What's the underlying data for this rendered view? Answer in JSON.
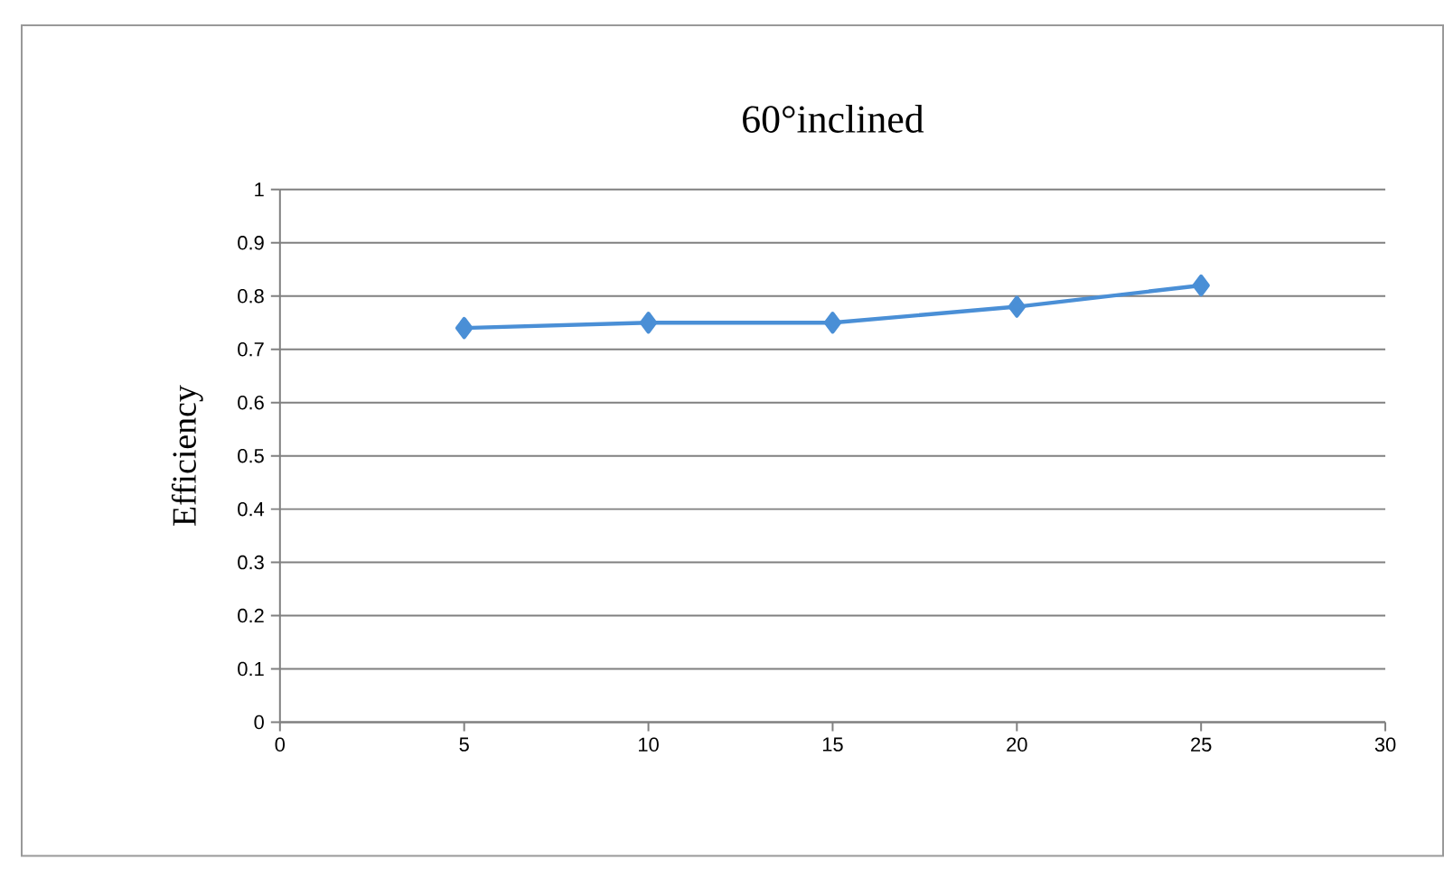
{
  "chart_data": {
    "type": "line",
    "title": "60°inclined",
    "ylabel": "Efficiency",
    "x": [
      5,
      10,
      15,
      20,
      25
    ],
    "series": [
      {
        "color": "#4a8fd6",
        "values": [
          0.74,
          0.75,
          0.75,
          0.78,
          0.82
        ]
      }
    ],
    "xlim": [
      0,
      30
    ],
    "xticks": [
      0,
      5,
      10,
      15,
      20,
      25,
      30
    ],
    "ylim": [
      0,
      1
    ],
    "yticks": [
      0,
      0.1,
      0.2,
      0.3,
      0.4,
      0.5,
      0.6,
      0.7,
      0.8,
      0.9,
      1
    ],
    "grid": "y",
    "marker": "diamond",
    "line_style": "solid"
  }
}
